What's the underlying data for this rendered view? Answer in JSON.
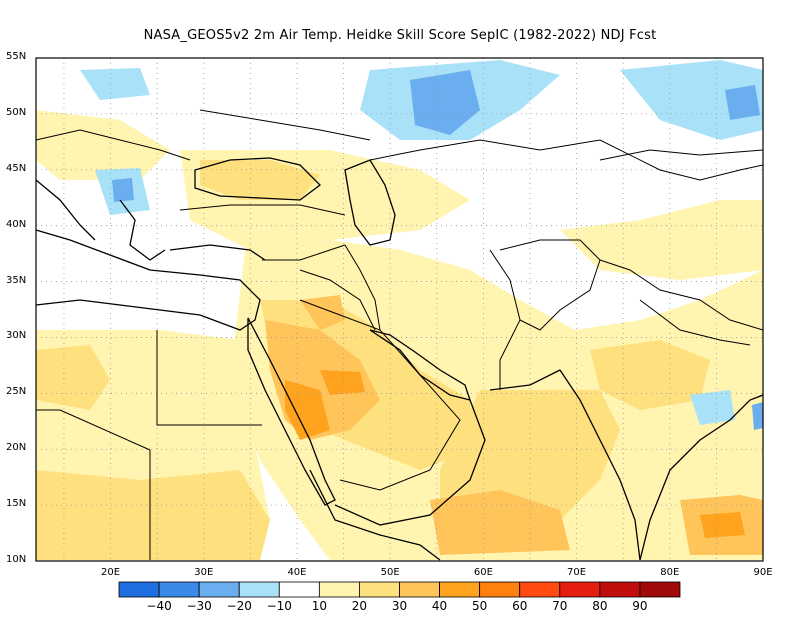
{
  "title": "NASA_GEOS5v2  2m Air Temp. Heidke Skill Score SepIC (1982-2022) NDJ Fcst",
  "lat_labels": [
    "55N",
    "50N",
    "45N",
    "40N",
    "35N",
    "30N",
    "25N",
    "20N",
    "15N",
    "10N"
  ],
  "lon_labels": [
    "20E",
    "30E",
    "40E",
    "50E",
    "60E",
    "70E",
    "80E",
    "90E"
  ],
  "extent": {
    "lon_min": 12,
    "lon_max": 90,
    "lat_min": 10,
    "lat_max": 55
  },
  "grid": {
    "lon_step": 5,
    "lat_step": 5,
    "style": "dotted"
  },
  "colorbar": {
    "labels": [
      "−40",
      "−30",
      "−20",
      "−10",
      "10",
      "20",
      "30",
      "40",
      "50",
      "60",
      "70",
      "80",
      "90"
    ],
    "colors": [
      "#1f6fe0",
      "#3c8ae8",
      "#6aaef0",
      "#a9e2f8",
      "#ffffff",
      "#fff4b0",
      "#ffe07e",
      "#ffc45a",
      "#ffa31f",
      "#ff7f0f",
      "#ff4b12",
      "#e51e12",
      "#c20d0d",
      "#a00a0a"
    ]
  },
  "regions": [
    {
      "color": "#fff4b0",
      "label": "20"
    },
    {
      "color": "#ffe07e",
      "label": "30"
    },
    {
      "color": "#ffc45a",
      "label": "40"
    },
    {
      "color": "#ffa31f",
      "label": "50"
    },
    {
      "color": "#ff7f0f",
      "label": "60"
    },
    {
      "color": "#a9e2f8",
      "label": "-10"
    },
    {
      "color": "#6aaef0",
      "label": "-20"
    }
  ]
}
